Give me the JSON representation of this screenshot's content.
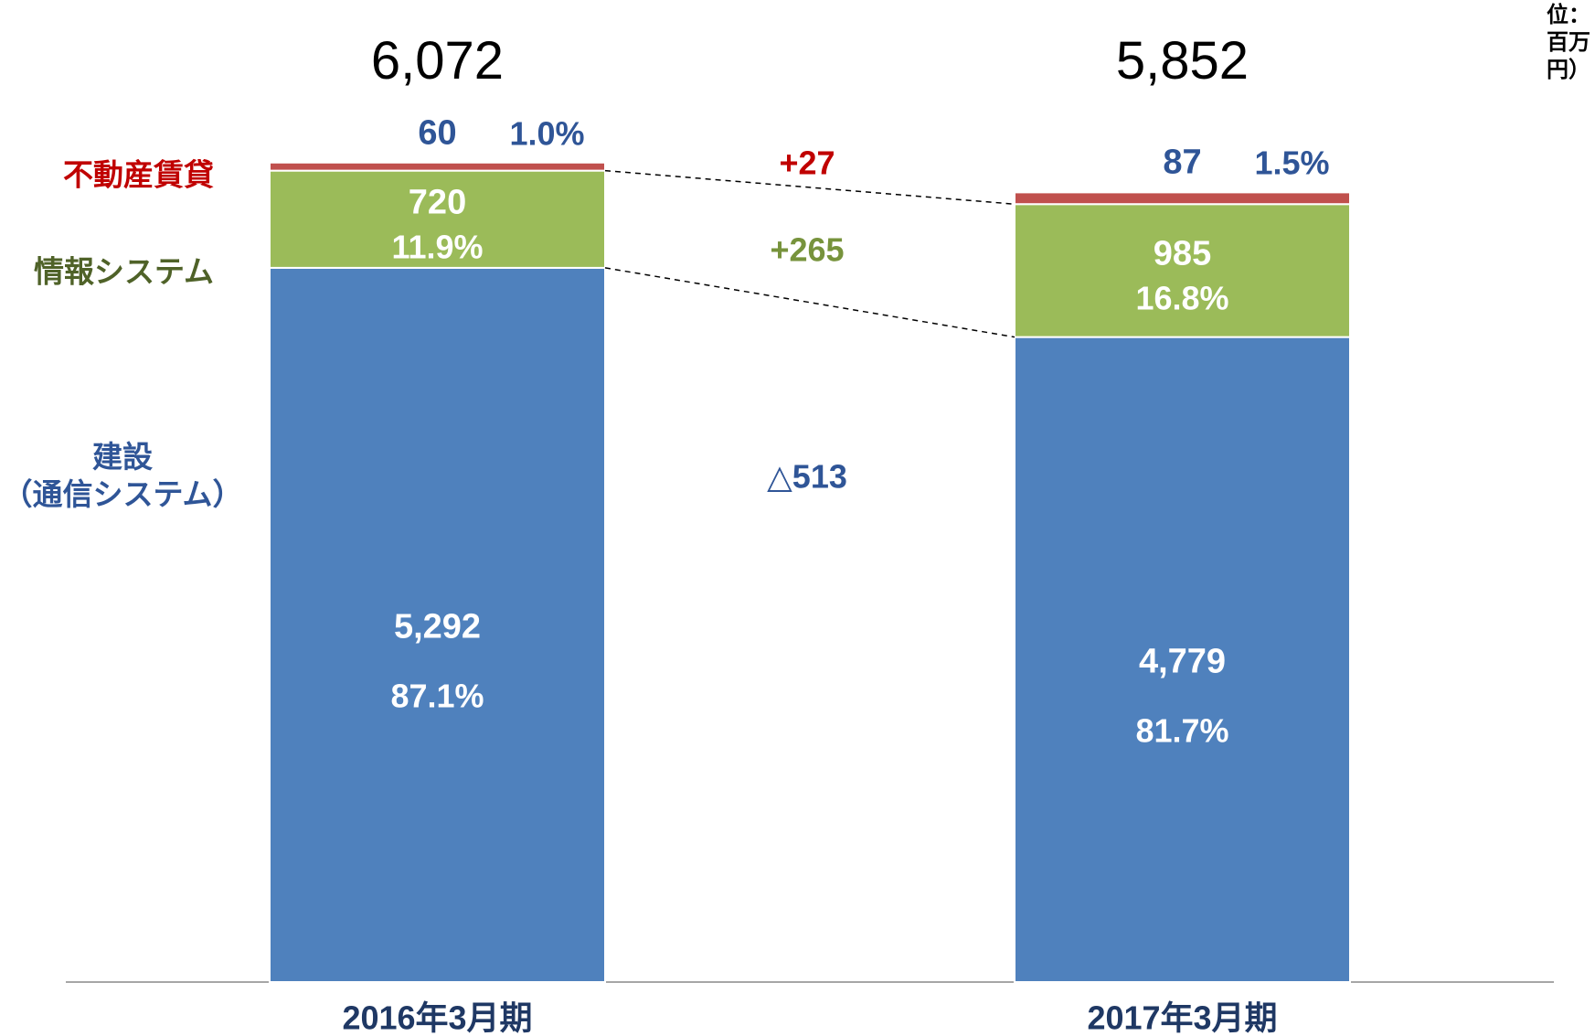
{
  "chart_data": {
    "type": "stacked_bar",
    "unit_label": "（単位：百万円）",
    "categories": [
      "2016年3月期",
      "2017年3月期"
    ],
    "totals": [
      6072,
      5852
    ],
    "total_labels": [
      "6,072",
      "5,852"
    ],
    "series": [
      {
        "name": "建設\n（通信システム）",
        "color": "#4f81bd",
        "label_color": "#2f5597",
        "values": [
          5292,
          4779
        ],
        "value_labels": [
          "5,292",
          "4,779"
        ],
        "shares": [
          87.1,
          81.7
        ],
        "share_labels": [
          "87.1%",
          "81.7%"
        ]
      },
      {
        "name": "情報システム",
        "color": "#9bbb59",
        "label_color": "#4f6228",
        "values": [
          720,
          985
        ],
        "shares": [
          11.9,
          16.8
        ],
        "share_labels": [
          "11.9%",
          "16.8%"
        ]
      },
      {
        "name": "不動産賃貸",
        "color": "#c0504d",
        "label_color": "#c00000",
        "values": [
          60,
          87
        ],
        "shares": [
          1.0,
          1.5
        ],
        "share_labels": [
          "1.0%",
          "1.5%"
        ]
      }
    ],
    "changes": {
      "values": [
        -513,
        265,
        27
      ],
      "value_labels": [
        "△513",
        "+265",
        "+27"
      ],
      "colors": [
        "#2f5597",
        "#77933c",
        "#c00000"
      ]
    }
  }
}
